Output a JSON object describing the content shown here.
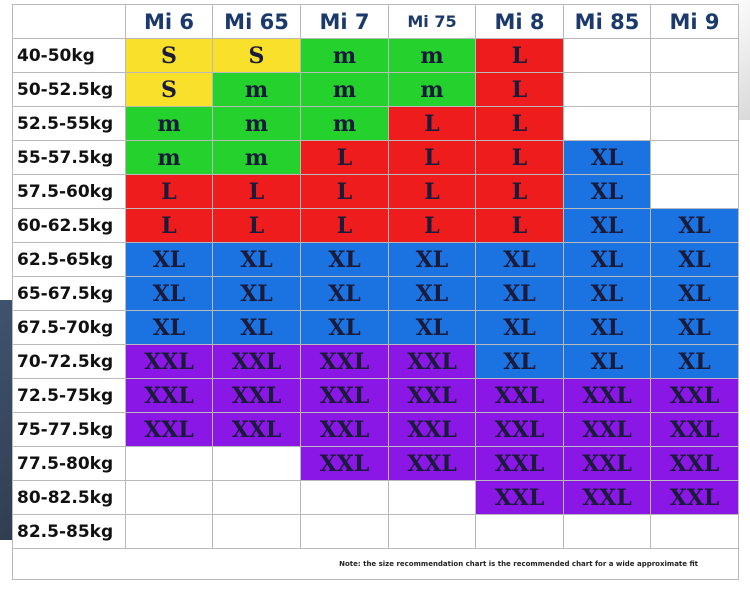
{
  "chart": {
    "columns": [
      "Mi 6",
      "Mi 65",
      "Mi 7",
      "Mi 75",
      "Mi 8",
      "Mi 85",
      "Mi 9"
    ],
    "rows": [
      {
        "weight": "40-50kg",
        "sizes": [
          "S",
          "S",
          "m",
          "m",
          "L",
          "",
          ""
        ]
      },
      {
        "weight": "50-52.5kg",
        "sizes": [
          "S",
          "m",
          "m",
          "m",
          "L",
          "",
          ""
        ]
      },
      {
        "weight": "52.5-55kg",
        "sizes": [
          "m",
          "m",
          "m",
          "L",
          "L",
          "",
          ""
        ]
      },
      {
        "weight": "55-57.5kg",
        "sizes": [
          "m",
          "m",
          "L",
          "L",
          "L",
          "XL",
          ""
        ]
      },
      {
        "weight": "57.5-60kg",
        "sizes": [
          "L",
          "L",
          "L",
          "L",
          "L",
          "XL",
          ""
        ]
      },
      {
        "weight": "60-62.5kg",
        "sizes": [
          "L",
          "L",
          "L",
          "L",
          "L",
          "XL",
          "XL"
        ]
      },
      {
        "weight": "62.5-65kg",
        "sizes": [
          "XL",
          "XL",
          "XL",
          "XL",
          "XL",
          "XL",
          "XL"
        ]
      },
      {
        "weight": "65-67.5kg",
        "sizes": [
          "XL",
          "XL",
          "XL",
          "XL",
          "XL",
          "XL",
          "XL"
        ]
      },
      {
        "weight": "67.5-70kg",
        "sizes": [
          "XL",
          "XL",
          "XL",
          "XL",
          "XL",
          "XL",
          "XL"
        ]
      },
      {
        "weight": "70-72.5kg",
        "sizes": [
          "XXL",
          "XXL",
          "XXL",
          "XXL",
          "XL",
          "XL",
          "XL"
        ]
      },
      {
        "weight": "72.5-75kg",
        "sizes": [
          "XXL",
          "XXL",
          "XXL",
          "XXL",
          "XXL",
          "XXL",
          "XXL"
        ]
      },
      {
        "weight": "75-77.5kg",
        "sizes": [
          "XXL",
          "XXL",
          "XXL",
          "XXL",
          "XXL",
          "XXL",
          "XXL"
        ]
      },
      {
        "weight": "77.5-80kg",
        "sizes": [
          "",
          "",
          "XXL",
          "XXL",
          "XXL",
          "XXL",
          "XXL"
        ]
      },
      {
        "weight": "80-82.5kg",
        "sizes": [
          "",
          "",
          "",
          "",
          "XXL",
          "XXL",
          "XXL"
        ]
      },
      {
        "weight": "82.5-85kg",
        "sizes": [
          "",
          "",
          "",
          "",
          "",
          "",
          ""
        ]
      }
    ],
    "size_colors": {
      "S": "#f9e02a",
      "m": "#25d12c",
      "L": "#ee1c1c",
      "XL": "#1a73e0",
      "XXL": "#8a17e6",
      "empty": "#ffffff"
    },
    "note": "Note: the size recommendation chart is the recommended chart for a wide approximate fit"
  }
}
